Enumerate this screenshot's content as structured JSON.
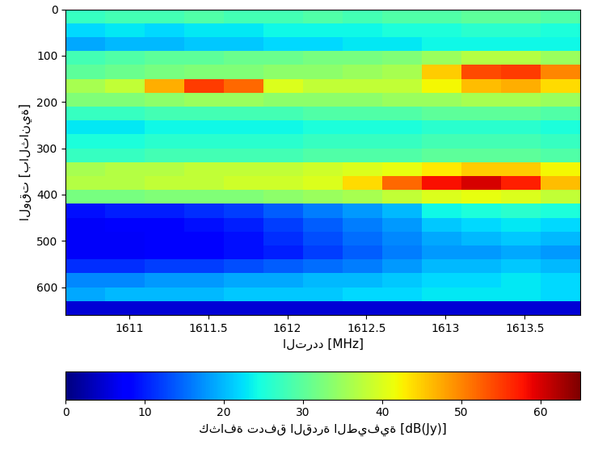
{
  "chart_data": {
    "type": "heatmap",
    "x_label": "التردد [MHz]",
    "y_label": "الوقت [بالثانية]",
    "color": "jet",
    "x": [
      1610.725,
      1610.975,
      1611.225,
      1611.475,
      1611.725,
      1611.975,
      1612.225,
      1612.475,
      1612.725,
      1612.975,
      1613.225,
      1613.475,
      1613.725
    ],
    "y": [
      15,
      45,
      75,
      105,
      135,
      165,
      195,
      225,
      255,
      285,
      315,
      345,
      375,
      405,
      435,
      465,
      495,
      525,
      555,
      585,
      615,
      645
    ],
    "cells": [
      [
        27,
        28,
        28,
        29,
        28,
        28,
        29,
        28,
        29,
        29,
        30,
        30,
        29
      ],
      [
        22,
        23,
        22,
        23,
        23,
        24,
        24,
        24,
        25,
        25,
        26,
        26,
        25
      ],
      [
        19,
        20,
        20,
        21,
        21,
        22,
        22,
        23,
        23,
        24,
        24,
        24,
        24
      ],
      [
        28,
        29,
        30,
        30,
        31,
        31,
        32,
        32,
        33,
        35,
        37,
        37,
        35
      ],
      [
        30,
        31,
        32,
        33,
        33,
        34,
        34,
        35,
        36,
        45,
        54,
        55,
        50
      ],
      [
        36,
        38,
        47,
        55,
        52,
        40,
        38,
        38,
        38,
        42,
        46,
        47,
        44
      ],
      [
        33,
        33,
        34,
        35,
        35,
        34,
        34,
        34,
        35,
        35,
        36,
        36,
        35
      ],
      [
        27,
        27,
        28,
        28,
        28,
        28,
        29,
        29,
        29,
        30,
        30,
        30,
        29
      ],
      [
        23,
        23,
        24,
        24,
        24,
        24,
        25,
        25,
        25,
        26,
        26,
        26,
        25
      ],
      [
        25,
        25,
        26,
        26,
        26,
        26,
        27,
        27,
        27,
        28,
        28,
        28,
        27
      ],
      [
        27,
        27,
        28,
        28,
        28,
        28,
        29,
        29,
        29,
        30,
        30,
        30,
        29
      ],
      [
        36,
        37,
        37,
        38,
        38,
        38,
        39,
        40,
        41,
        43,
        45,
        45,
        42
      ],
      [
        37,
        37,
        38,
        38,
        39,
        39,
        40,
        44,
        52,
        58,
        60,
        57,
        46
      ],
      [
        32,
        32,
        33,
        33,
        33,
        34,
        35,
        36,
        38,
        40,
        41,
        40,
        38
      ],
      [
        9,
        10,
        10,
        11,
        12,
        14,
        16,
        18,
        20,
        24,
        25,
        26,
        25
      ],
      [
        7,
        8,
        8,
        9,
        10,
        12,
        14,
        16,
        18,
        21,
        22,
        23,
        22
      ],
      [
        7,
        7,
        8,
        8,
        9,
        11,
        13,
        15,
        17,
        19,
        20,
        21,
        20
      ],
      [
        7,
        7,
        8,
        8,
        9,
        10,
        12,
        14,
        16,
        18,
        18,
        19,
        18
      ],
      [
        11,
        11,
        12,
        12,
        13,
        14,
        15,
        16,
        18,
        20,
        20,
        21,
        20
      ],
      [
        17,
        17,
        18,
        18,
        19,
        19,
        20,
        20,
        21,
        22,
        22,
        23,
        22
      ],
      [
        19,
        20,
        20,
        20,
        21,
        21,
        21,
        22,
        22,
        23,
        23,
        23,
        22
      ],
      [
        5,
        5,
        5,
        5,
        5,
        5,
        5,
        5,
        5,
        5,
        5,
        5,
        5
      ]
    ],
    "xlim": [
      1610.6,
      1613.85
    ],
    "ylim": [
      660,
      0
    ],
    "xticks": [
      1611,
      1611.5,
      1612,
      1612.5,
      1613,
      1613.5
    ],
    "yticks": [
      100,
      200,
      300,
      400,
      500,
      600,
      0
    ],
    "colorbar": {
      "label": "كثافة تدفق القدرة الطيفية [dB(Jy)]",
      "range": [
        0,
        65
      ],
      "ticks": [
        0,
        10,
        20,
        30,
        40,
        50,
        60
      ]
    }
  }
}
